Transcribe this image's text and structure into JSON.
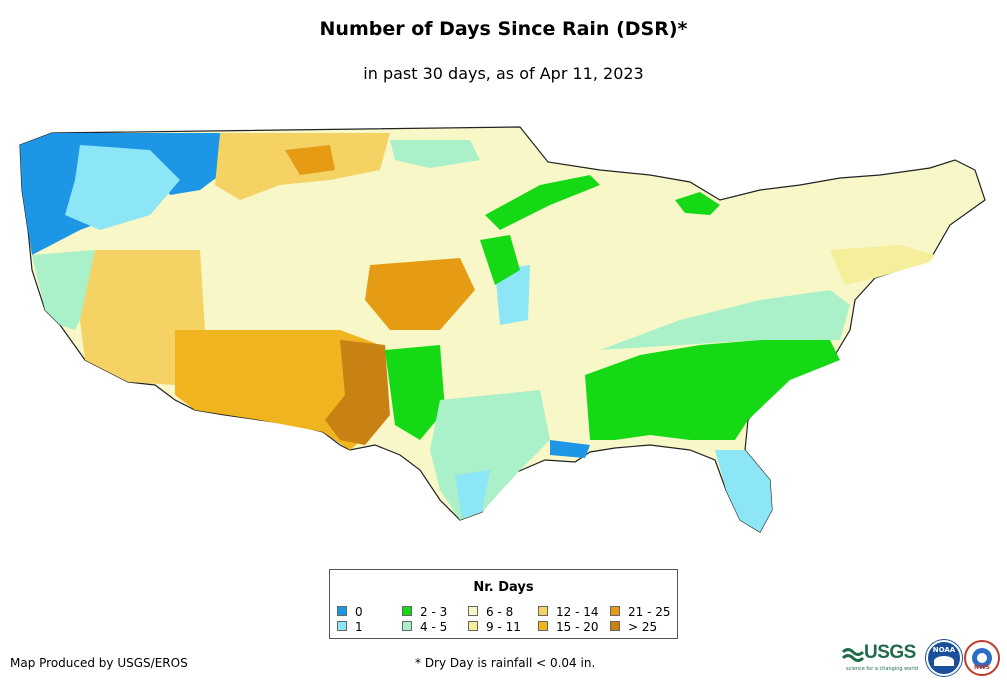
{
  "title": "Number of Days Since Rain (DSR)*",
  "subtitle": "in past 30 days, as of Apr 11, 2023",
  "legend": {
    "title": "Nr. Days",
    "items": [
      {
        "label": "0",
        "color": "#1e96e6"
      },
      {
        "label": "1",
        "color": "#8ce6f5"
      },
      {
        "label": "2 - 3",
        "color": "#16d916"
      },
      {
        "label": "4 - 5",
        "color": "#aaf0c8"
      },
      {
        "label": "6 - 8",
        "color": "#f7f7c8"
      },
      {
        "label": "9 - 11",
        "color": "#f5ee9b"
      },
      {
        "label": "12 - 14",
        "color": "#f5d264"
      },
      {
        "label": "15 - 20",
        "color": "#f0b41e"
      },
      {
        "label": "21 - 25",
        "color": "#e69b14"
      },
      {
        "label": "> 25",
        "color": "#c88214"
      }
    ]
  },
  "credit": "Map Produced by USGS/EROS",
  "footnote": "* Dry Day is rainfall < 0.04 in.",
  "logos": {
    "usgs": "USGS",
    "usgs_tagline": "science for a changing world",
    "noaa": "NOAA",
    "nws": "NWS"
  }
}
